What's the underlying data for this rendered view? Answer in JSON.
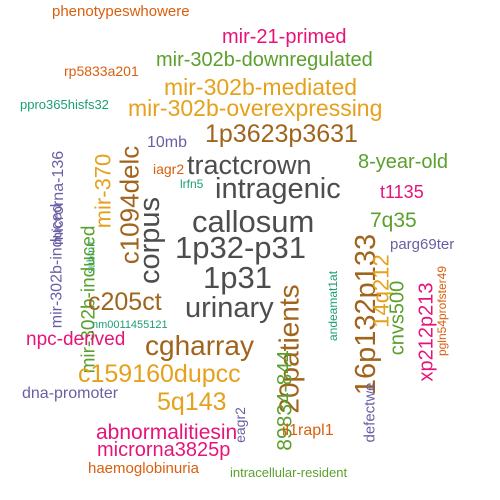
{
  "words": [
    {
      "text": "phenotypeswhowere",
      "color": "#d95f0e"
    },
    {
      "text": "mir-21-primed",
      "color": "#e6147a"
    },
    {
      "text": "mir-302b-downregulated",
      "color": "#5aa02c"
    },
    {
      "text": "rp5833a201",
      "color": "#d95f0e"
    },
    {
      "text": "mir-302b-mediated",
      "color": "#e5a11c"
    },
    {
      "text": "ppro365hisfs32",
      "color": "#1b9e77"
    },
    {
      "text": "mir-302b-overexpressing",
      "color": "#e5a11c"
    },
    {
      "text": "1p3623p3631",
      "color": "#a0641c"
    },
    {
      "text": "10mb",
      "color": "#6a5fa4"
    },
    {
      "text": "tractcrown",
      "color": "#4d4d4d"
    },
    {
      "text": "8-year-old",
      "color": "#5aa02c"
    },
    {
      "text": "iagr2",
      "color": "#d95f0e"
    },
    {
      "text": "intragenic",
      "color": "#4d4d4d"
    },
    {
      "text": "lrfn5",
      "color": "#1b9e77"
    },
    {
      "text": "t1135",
      "color": "#e6147a"
    },
    {
      "text": "microrna-136",
      "color": "#6a5fa4"
    },
    {
      "text": "c1094delc",
      "color": "#a0641c"
    },
    {
      "text": "mir-370",
      "color": "#e5a11c"
    },
    {
      "text": "corpus",
      "color": "#4d4d4d"
    },
    {
      "text": "callosum",
      "color": "#4d4d4d"
    },
    {
      "text": "7q35",
      "color": "#5aa02c"
    },
    {
      "text": "mir-302b-induced",
      "color": "#6a5fa4"
    },
    {
      "text": "submit",
      "color": "#1b9e77"
    },
    {
      "text": "1p32-p31",
      "color": "#4d4d4d"
    },
    {
      "text": "16p132p133",
      "color": "#a0641c"
    },
    {
      "text": "14q212",
      "color": "#e5a11c"
    },
    {
      "text": "parg69ter",
      "color": "#6a5fa4"
    },
    {
      "text": "1p31",
      "color": "#4d4d4d"
    },
    {
      "text": "andeamat1at",
      "color": "#1b9e77"
    },
    {
      "text": "cnvs500",
      "color": "#5aa02c"
    },
    {
      "text": "xp212p213",
      "color": "#e6147a"
    },
    {
      "text": "pgln54profster49",
      "color": "#d95f0e"
    },
    {
      "text": "mir-302b-induced",
      "color": "#5aa02c"
    },
    {
      "text": "c205ct",
      "color": "#a0641c"
    },
    {
      "text": "urinary",
      "color": "#4d4d4d"
    },
    {
      "text": "nm0011455121",
      "color": "#1b9e77"
    },
    {
      "text": "npc-derived",
      "color": "#e6147a"
    },
    {
      "text": "cgharray",
      "color": "#a0641c"
    },
    {
      "text": "20patients",
      "color": "#a0641c"
    },
    {
      "text": "c159160dupcc",
      "color": "#e5a11c"
    },
    {
      "text": "89834-844",
      "color": "#5aa02c"
    },
    {
      "text": "dna-promoter",
      "color": "#6a5fa4"
    },
    {
      "text": "5q143",
      "color": "#e5a11c"
    },
    {
      "text": "eagr2",
      "color": "#6a5fa4"
    },
    {
      "text": "defectwe",
      "color": "#6a5fa4"
    },
    {
      "text": "abnormalitiesin",
      "color": "#e6147a"
    },
    {
      "text": "il1rapl1",
      "color": "#d95f0e"
    },
    {
      "text": "microrna3825p",
      "color": "#e6147a"
    },
    {
      "text": "haemoglobinuria",
      "color": "#d95f0e"
    },
    {
      "text": "intracellular-resident",
      "color": "#5aa02c"
    }
  ]
}
